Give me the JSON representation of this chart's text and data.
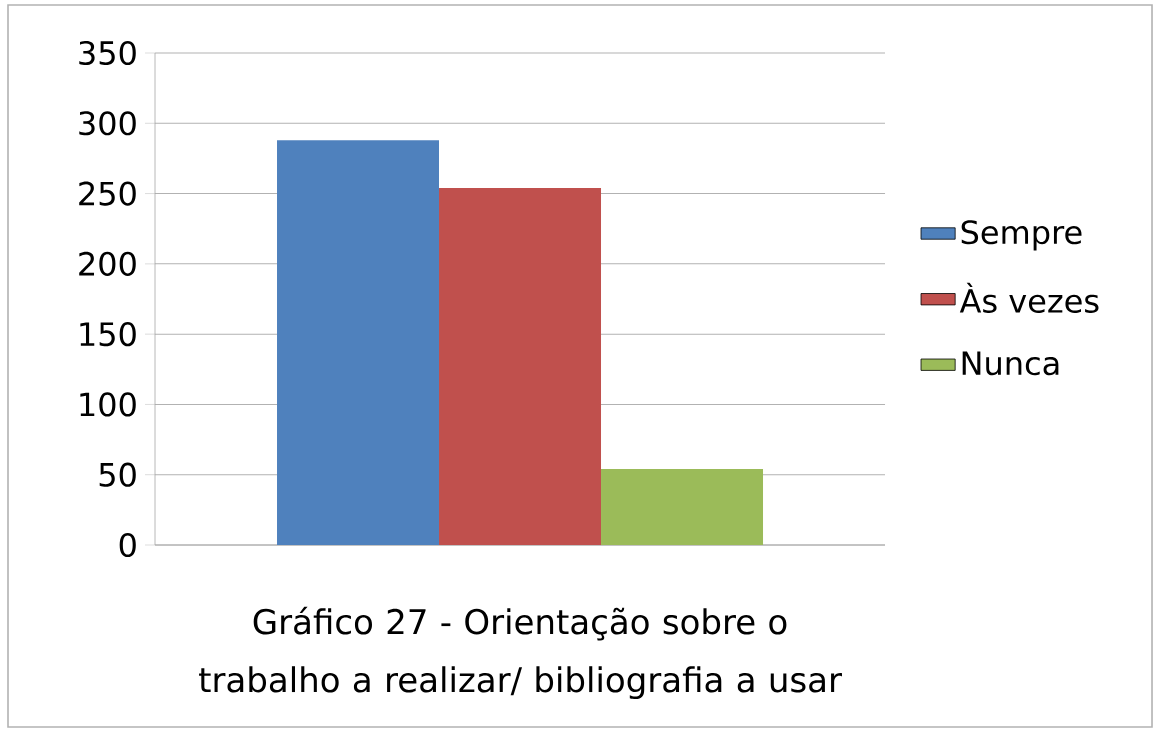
{
  "chart_data": {
    "type": "bar",
    "title": "Gráfico 27 - Orientação sobre o trabalho a realizar/ bibliografia  a usar",
    "categories": [
      null
    ],
    "series": [
      {
        "name": "Sempre",
        "color": "#4f81bd",
        "values": [
          288
        ]
      },
      {
        "name": "Às vezes",
        "color": "#c0504d",
        "values": [
          254
        ]
      },
      {
        "name": "Nunca",
        "color": "#9bbb59",
        "values": [
          54
        ]
      }
    ],
    "ylim": [
      0,
      350
    ],
    "yticks": [
      0,
      50,
      100,
      150,
      200,
      250,
      300,
      350
    ],
    "grid": "y",
    "legend": "right"
  }
}
